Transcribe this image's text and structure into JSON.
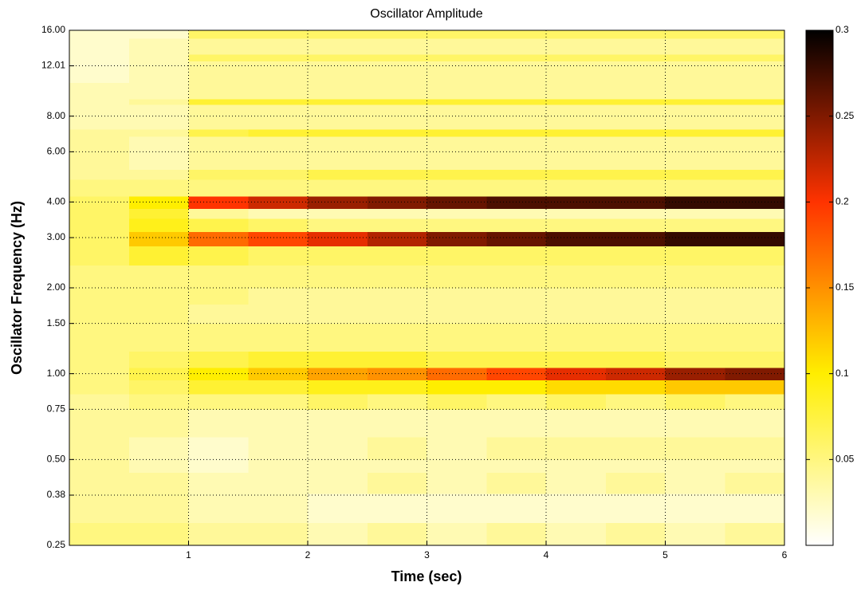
{
  "chart_data": {
    "type": "heatmap",
    "title": "Oscillator Amplitude",
    "xlabel": "Time (sec)",
    "ylabel": "Oscillator Frequency (Hz)",
    "yscale": "log",
    "grid": true,
    "xlim": [
      0,
      6
    ],
    "ylim": [
      0.25,
      16
    ],
    "xticks": [
      1,
      2,
      3,
      4,
      5,
      6
    ],
    "yticks": [
      {
        "value": 0.25,
        "label": "0.25"
      },
      {
        "value": 0.375,
        "label": "0.38"
      },
      {
        "value": 0.5,
        "label": "0.50"
      },
      {
        "value": 0.75,
        "label": "0.75"
      },
      {
        "value": 1,
        "label": "1.00"
      },
      {
        "value": 1.5,
        "label": "1.50"
      },
      {
        "value": 2,
        "label": "2.00"
      },
      {
        "value": 3,
        "label": "3.00"
      },
      {
        "value": 4,
        "label": "4.00"
      },
      {
        "value": 6,
        "label": "6.00"
      },
      {
        "value": 8,
        "label": "8.00"
      },
      12.01,
      {
        "value": 16,
        "label": "16.00"
      }
    ],
    "zlim": [
      0,
      0.3
    ],
    "zticks": [
      0.05,
      0.1,
      0.15,
      0.2,
      0.25,
      0.3
    ],
    "colors": [
      "#ffffff",
      "#ffee00",
      "#ff3300",
      "#000000"
    ],
    "x_bins": [
      0,
      0.5,
      1,
      1.5,
      2,
      2.5,
      3,
      3.5,
      4,
      4.5,
      5,
      5.5,
      6
    ],
    "y_bins": [
      0.25,
      0.3,
      0.38,
      0.45,
      0.5,
      0.6,
      0.75,
      0.85,
      0.95,
      1.05,
      1.2,
      1.5,
      1.75,
      2.0,
      2.4,
      2.8,
      3.15,
      3.5,
      3.8,
      4.2,
      4.8,
      5.2,
      6.0,
      6.8,
      7.2,
      8.0,
      8.8,
      9.2,
      10.5,
      12.5,
      13.2,
      15,
      16
    ],
    "z": [
      [
        0.05,
        0.05,
        0.04,
        0.04,
        0.03,
        0.04,
        0.03,
        0.04,
        0.03,
        0.04,
        0.03,
        0.04
      ],
      [
        0.04,
        0.04,
        0.03,
        0.03,
        0.02,
        0.02,
        0.02,
        0.02,
        0.02,
        0.02,
        0.02,
        0.02
      ],
      [
        0.04,
        0.04,
        0.03,
        0.03,
        0.03,
        0.04,
        0.03,
        0.04,
        0.03,
        0.04,
        0.03,
        0.04
      ],
      [
        0.04,
        0.03,
        0.02,
        0.03,
        0.03,
        0.03,
        0.03,
        0.03,
        0.03,
        0.03,
        0.03,
        0.03
      ],
      [
        0.04,
        0.03,
        0.02,
        0.03,
        0.03,
        0.04,
        0.03,
        0.04,
        0.04,
        0.04,
        0.04,
        0.04
      ],
      [
        0.04,
        0.04,
        0.03,
        0.03,
        0.03,
        0.03,
        0.03,
        0.03,
        0.03,
        0.03,
        0.03,
        0.03
      ],
      [
        0.04,
        0.05,
        0.05,
        0.05,
        0.06,
        0.05,
        0.06,
        0.05,
        0.06,
        0.05,
        0.06,
        0.05
      ],
      [
        0.05,
        0.06,
        0.08,
        0.08,
        0.09,
        0.09,
        0.1,
        0.1,
        0.11,
        0.11,
        0.12,
        0.12
      ],
      [
        0.05,
        0.07,
        0.1,
        0.12,
        0.14,
        0.15,
        0.17,
        0.19,
        0.21,
        0.22,
        0.24,
        0.25
      ],
      [
        0.05,
        0.06,
        0.07,
        0.08,
        0.08,
        0.08,
        0.07,
        0.07,
        0.07,
        0.07,
        0.06,
        0.06
      ],
      [
        0.05,
        0.05,
        0.05,
        0.05,
        0.05,
        0.05,
        0.05,
        0.05,
        0.05,
        0.05,
        0.05,
        0.05
      ],
      [
        0.05,
        0.05,
        0.04,
        0.04,
        0.04,
        0.04,
        0.04,
        0.04,
        0.04,
        0.04,
        0.04,
        0.04
      ],
      [
        0.05,
        0.05,
        0.05,
        0.04,
        0.04,
        0.04,
        0.04,
        0.04,
        0.04,
        0.04,
        0.04,
        0.04
      ],
      [
        0.05,
        0.05,
        0.05,
        0.05,
        0.05,
        0.05,
        0.05,
        0.05,
        0.05,
        0.05,
        0.05,
        0.05
      ],
      [
        0.06,
        0.08,
        0.07,
        0.06,
        0.06,
        0.06,
        0.06,
        0.06,
        0.06,
        0.06,
        0.06,
        0.06
      ],
      [
        0.06,
        0.12,
        0.17,
        0.19,
        0.21,
        0.23,
        0.25,
        0.26,
        0.27,
        0.27,
        0.28,
        0.28
      ],
      [
        0.06,
        0.09,
        0.07,
        0.06,
        0.05,
        0.05,
        0.05,
        0.05,
        0.05,
        0.05,
        0.05,
        0.05
      ],
      [
        0.06,
        0.08,
        0.04,
        0.03,
        0.03,
        0.03,
        0.03,
        0.03,
        0.03,
        0.03,
        0.03,
        0.03
      ],
      [
        0.06,
        0.1,
        0.2,
        0.22,
        0.24,
        0.25,
        0.26,
        0.27,
        0.27,
        0.27,
        0.28,
        0.28
      ],
      [
        0.05,
        0.05,
        0.05,
        0.05,
        0.05,
        0.05,
        0.05,
        0.05,
        0.05,
        0.05,
        0.05,
        0.05
      ],
      [
        0.04,
        0.04,
        0.06,
        0.06,
        0.07,
        0.07,
        0.07,
        0.07,
        0.07,
        0.07,
        0.07,
        0.07
      ],
      [
        0.04,
        0.03,
        0.04,
        0.04,
        0.04,
        0.04,
        0.04,
        0.04,
        0.04,
        0.04,
        0.04,
        0.04
      ],
      [
        0.04,
        0.03,
        0.04,
        0.04,
        0.04,
        0.04,
        0.04,
        0.04,
        0.04,
        0.04,
        0.04,
        0.04
      ],
      [
        0.04,
        0.04,
        0.07,
        0.08,
        0.08,
        0.08,
        0.08,
        0.08,
        0.08,
        0.08,
        0.08,
        0.08
      ],
      [
        0.03,
        0.03,
        0.04,
        0.04,
        0.04,
        0.04,
        0.04,
        0.04,
        0.04,
        0.04,
        0.04,
        0.04
      ],
      [
        0.03,
        0.03,
        0.04,
        0.04,
        0.04,
        0.04,
        0.04,
        0.04,
        0.04,
        0.04,
        0.04,
        0.04
      ],
      [
        0.03,
        0.04,
        0.08,
        0.08,
        0.08,
        0.08,
        0.08,
        0.08,
        0.08,
        0.08,
        0.08,
        0.08
      ],
      [
        0.03,
        0.03,
        0.04,
        0.04,
        0.04,
        0.04,
        0.04,
        0.04,
        0.04,
        0.04,
        0.04,
        0.04
      ],
      [
        0.02,
        0.03,
        0.04,
        0.04,
        0.04,
        0.04,
        0.04,
        0.04,
        0.04,
        0.04,
        0.04,
        0.04
      ],
      [
        0.02,
        0.03,
        0.06,
        0.06,
        0.06,
        0.06,
        0.06,
        0.06,
        0.06,
        0.06,
        0.06,
        0.06
      ],
      [
        0.02,
        0.03,
        0.04,
        0.04,
        0.04,
        0.04,
        0.04,
        0.04,
        0.04,
        0.04,
        0.04,
        0.04
      ],
      [
        0.02,
        0.02,
        0.06,
        0.06,
        0.06,
        0.06,
        0.06,
        0.06,
        0.06,
        0.06,
        0.06,
        0.06
      ]
    ]
  }
}
